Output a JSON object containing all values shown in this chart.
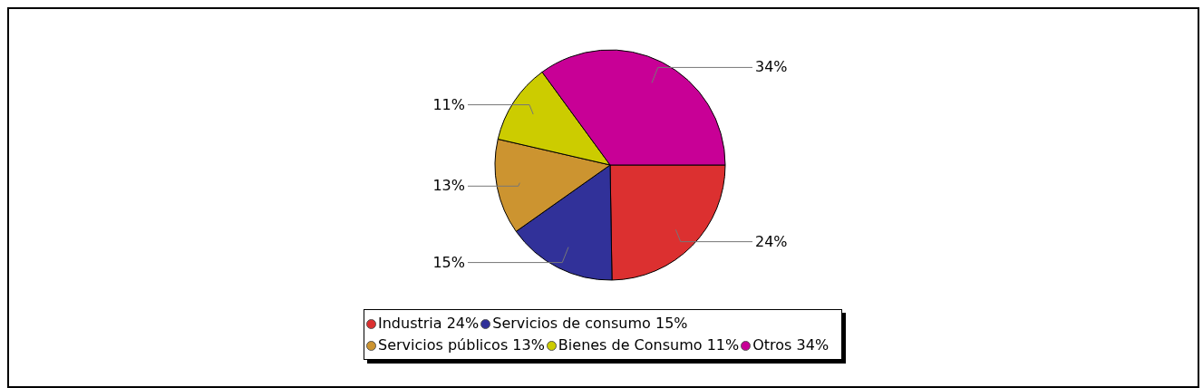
{
  "chart_data": {
    "type": "pie",
    "categories": [
      "Industria",
      "Servicios de consumo",
      "Servicios públicos",
      "Bienes de Consumo",
      "Otros"
    ],
    "values": [
      24,
      15,
      13,
      11,
      34
    ],
    "value_labels": [
      "24%",
      "15%",
      "13%",
      "11%",
      "34%"
    ],
    "colors": [
      "#dc3030",
      "#313199",
      "#cc9430",
      "#cccc00",
      "#c80096"
    ],
    "legend": "bottom"
  }
}
